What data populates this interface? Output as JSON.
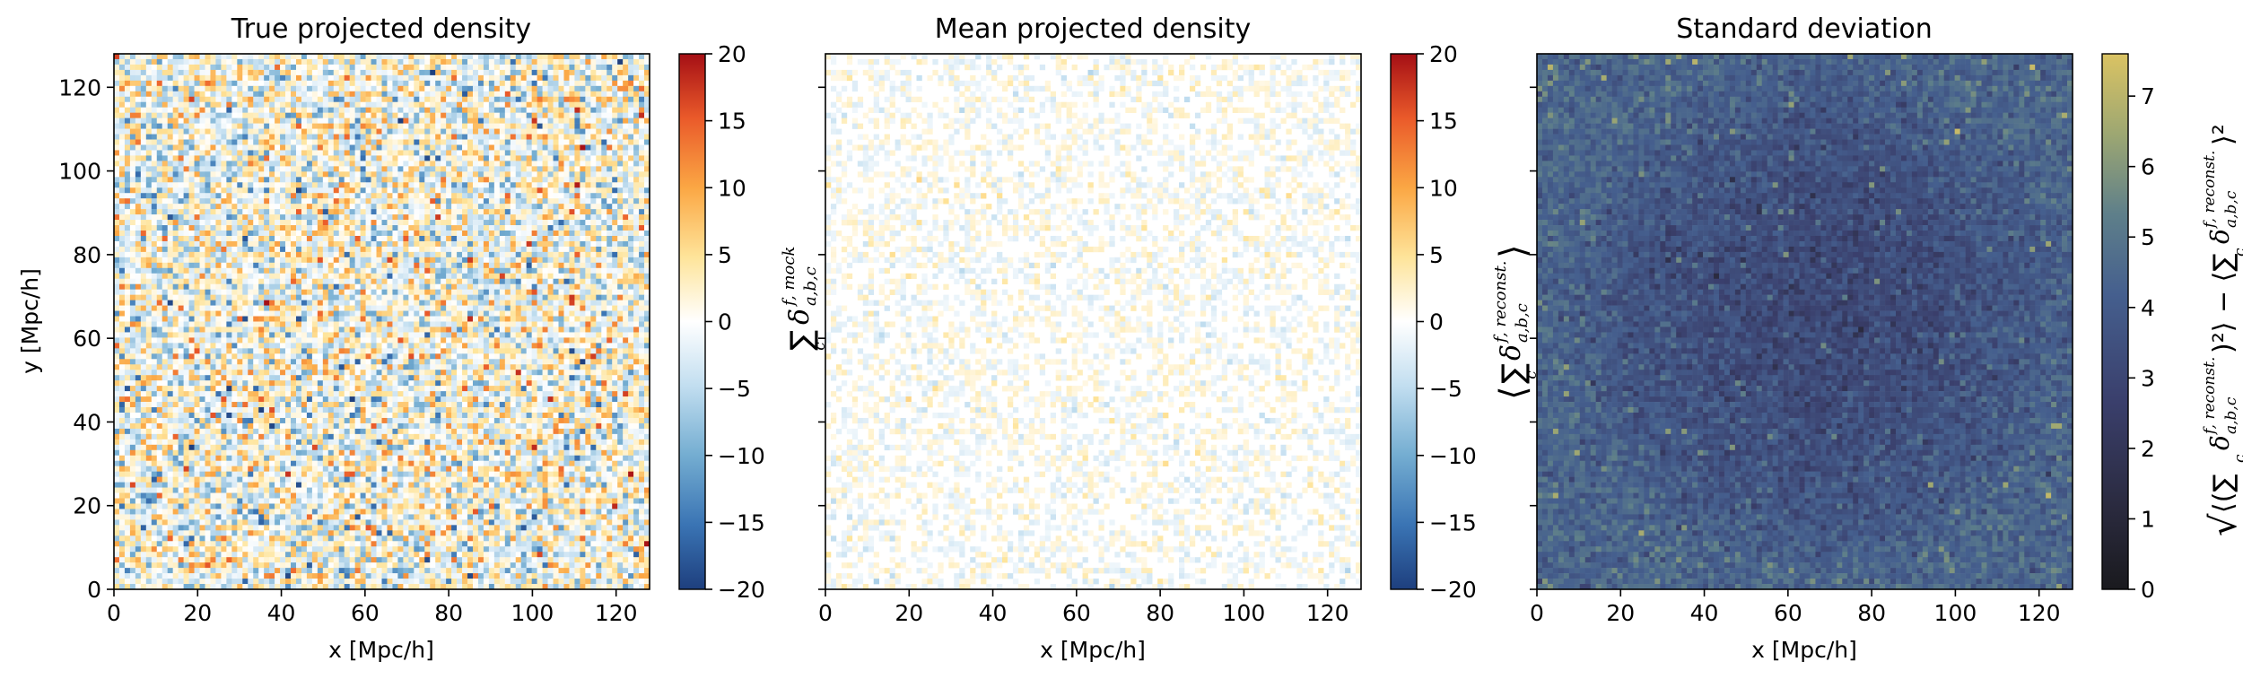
{
  "chart_data": [
    {
      "type": "heatmap",
      "title": "True projected density",
      "xlabel": "x [Mpc/h]",
      "ylabel": "y [Mpc/h]",
      "xlim": [
        0,
        128
      ],
      "ylim": [
        0,
        128
      ],
      "xticks": [
        "0",
        "20",
        "40",
        "60",
        "80",
        "100",
        "120"
      ],
      "yticks": [
        "0",
        "20",
        "40",
        "60",
        "80",
        "100",
        "120"
      ],
      "colorbar": {
        "colormap": "RdYlBu_r",
        "range": [
          -20,
          20
        ],
        "ticks": [
          "−20",
          "−15",
          "−10",
          "−5",
          "0",
          "5",
          "10",
          "15",
          "20"
        ],
        "label": "∑c δ f, mock a,b,c"
      },
      "field": "noisy fluctuations spanning roughly −20 to 20, mostly within ±10"
    },
    {
      "type": "heatmap",
      "title": "Mean projected density",
      "xlabel": "x [Mpc/h]",
      "ylabel": "",
      "xlim": [
        0,
        128
      ],
      "ylim": [
        0,
        128
      ],
      "xticks": [
        "0",
        "20",
        "40",
        "60",
        "80",
        "100",
        "120"
      ],
      "colorbar": {
        "colormap": "RdYlBu_r",
        "range": [
          -20,
          20
        ],
        "ticks": [
          "−20",
          "−15",
          "−10",
          "−5",
          "0",
          "5",
          "10",
          "15",
          "20"
        ],
        "label": "⟨∑c δ f, reconst. a,b,c⟩"
      },
      "field": "nearly zero everywhere, faint values within about ±4"
    },
    {
      "type": "heatmap",
      "title": "Standard deviation",
      "xlabel": "x [Mpc/h]",
      "ylabel": "",
      "xlim": [
        0,
        128
      ],
      "ylim": [
        0,
        128
      ],
      "xticks": [
        "0",
        "20",
        "40",
        "60",
        "80",
        "100",
        "120"
      ],
      "colorbar": {
        "colormap": "cividis",
        "range": [
          0,
          7.6
        ],
        "ticks": [
          "0",
          "1",
          "2",
          "3",
          "4",
          "5",
          "6",
          "7"
        ],
        "label": "√(⟨(∑c δ f, reconst. a,b,c)²⟩ − ⟨∑c δ f, reconst. a,b,c⟩²)"
      },
      "field": "values roughly 2.5–4.5 in the center, rising to 4–5.5 toward the edges, isolated pixels up to ~7"
    }
  ],
  "labels": {
    "t0": "True projected density",
    "t1": "Mean projected density",
    "t2": "Standard deviation",
    "xlabel": "x [Mpc/h]",
    "ylabel": "y [Mpc/h]",
    "cb0_sum": "∑",
    "cb0_sub": "c",
    "cb0_delta": "δ",
    "cb0_sup": "f, mock",
    "cb0_idx": "a,b,c",
    "cb1_lang": "⟨",
    "cb1_rang": "⟩",
    "cb1_sum": "∑",
    "cb1_sub": "c",
    "cb1_delta": "δ",
    "cb1_sup": "f, reconst.",
    "cb1_idx": "a,b,c",
    "cb2_sqrt": "√",
    "cb2_inner": "⟨(∑",
    "cb2_sub": "c",
    "cb2_delta": "δ",
    "cb2_sup": "f, reconst.",
    "cb2_idx": "a,b,c",
    "cb2_sq": ")²⟩ − ⟨∑",
    "cb2_sub2": "c",
    "cb2_delta2": "δ",
    "cb2_sup2": "f, reconst.",
    "cb2_idx2": "a,b,c",
    "cb2_end": "⟩²"
  }
}
